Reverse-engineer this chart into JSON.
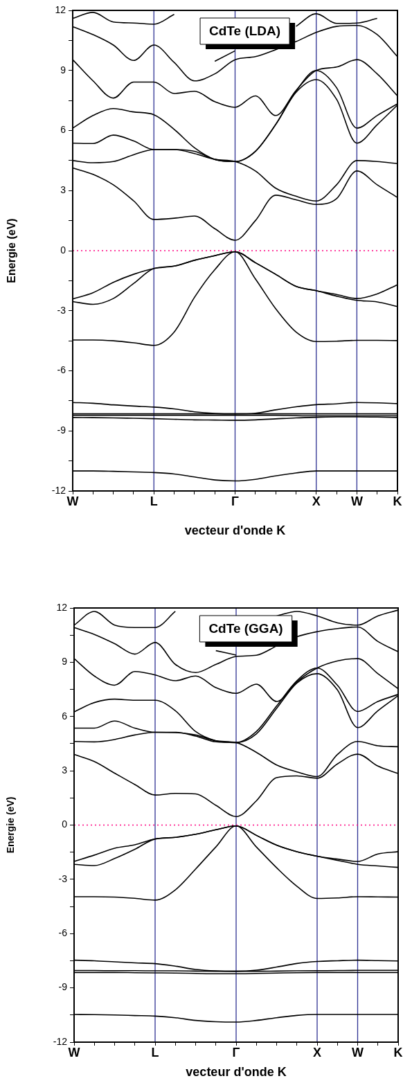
{
  "chart_data": [
    {
      "type": "line",
      "title": "CdTe (LDA)",
      "xlabel": "vecteur d'onde K",
      "ylabel": "Energie (eV)",
      "categories": [
        "W",
        null,
        null,
        null,
        "L",
        null,
        null,
        null,
        "Γ",
        null,
        null,
        null,
        "X",
        null,
        "W",
        null,
        "K"
      ],
      "ylim": [
        -12,
        12
      ],
      "yticks": [
        -12,
        {
          "value": -10.5,
          "label": null
        },
        -9,
        {
          "value": -7.5,
          "label": null
        },
        -6,
        {
          "value": -4.5,
          "label": null
        },
        -3,
        {
          "value": -1.5,
          "label": null
        },
        0,
        {
          "value": 1.5,
          "label": null
        },
        3,
        {
          "value": 4.5,
          "label": null
        },
        6,
        {
          "value": 7.5,
          "label": null
        },
        9,
        {
          "value": 10.5,
          "label": null
        },
        12
      ],
      "grid": "x",
      "ref_lines": [
        {
          "axis": "y",
          "value": 0,
          "color": "#ff0080",
          "line_style": "dotted"
        }
      ],
      "series": [
        {
          "color": "#000000",
          "values": [
            -11.0,
            -11.0,
            -11.02,
            -11.05,
            -11.08,
            -11.15,
            -11.3,
            -11.45,
            -11.5,
            -11.42,
            -11.25,
            -11.1,
            -11.0,
            -11.0,
            -11.0,
            -11.0,
            -11.0
          ]
        },
        {
          "color": "#000000",
          "values": [
            -8.33,
            -8.34,
            -8.35,
            -8.37,
            -8.39,
            -8.42,
            -8.45,
            -8.46,
            -8.47,
            -8.45,
            -8.4,
            -8.35,
            -8.32,
            -8.3,
            -8.3,
            -8.31,
            -8.33
          ]
        },
        {
          "color": "#000000",
          "values": [
            -8.22,
            -8.22,
            -8.22,
            -8.22,
            -8.22,
            -8.22,
            -8.22,
            -8.22,
            -8.22,
            -8.22,
            -8.22,
            -8.24,
            -8.25,
            -8.25,
            -8.25,
            -8.25,
            -8.25
          ]
        },
        {
          "color": "#000000",
          "values": [
            -8.15,
            -8.15,
            -8.15,
            -8.15,
            -8.15,
            -8.15,
            -8.15,
            -8.15,
            -8.15,
            -8.15,
            -8.15,
            -8.15,
            -8.15,
            -8.15,
            -8.15,
            -8.15,
            -8.15
          ]
        },
        {
          "color": "#000000",
          "values": [
            -7.58,
            -7.62,
            -7.7,
            -7.76,
            -7.81,
            -7.9,
            -8.05,
            -8.13,
            -8.15,
            -8.12,
            -7.95,
            -7.8,
            -7.69,
            -7.65,
            -7.58,
            -7.6,
            -7.64
          ]
        },
        {
          "color": "#000000",
          "values": [
            -4.46,
            -4.46,
            -4.5,
            -4.6,
            -4.73,
            -4.06,
            -2.33,
            -0.95,
            -0.05,
            -1.41,
            -2.9,
            -4.06,
            -4.54,
            -4.52,
            -4.48,
            -4.48,
            -4.49
          ]
        },
        {
          "color": "#000000",
          "values": [
            -2.54,
            -2.68,
            -2.39,
            -1.64,
            -0.89,
            -0.77,
            -0.48,
            -0.25,
            -0.05,
            -0.6,
            -1.18,
            -1.78,
            -2.0,
            -2.27,
            -2.48,
            -2.56,
            -2.79
          ]
        },
        {
          "color": "#000000",
          "values": [
            -2.41,
            -2.1,
            -1.58,
            -1.18,
            -0.89,
            -0.77,
            -0.48,
            -0.25,
            -0.05,
            -0.6,
            -1.18,
            -1.78,
            -2.0,
            -2.19,
            -2.39,
            -2.16,
            -1.7
          ]
        },
        {
          "color": "#000000",
          "values": [
            4.13,
            3.81,
            3.29,
            2.49,
            1.56,
            1.62,
            1.73,
            1.1,
            0.52,
            1.5,
            2.77,
            2.54,
            2.31,
            2.6,
            3.98,
            3.29,
            2.66
          ]
        },
        {
          "color": "#000000",
          "values": [
            4.5,
            4.39,
            4.45,
            4.79,
            5.05,
            5.05,
            4.85,
            4.56,
            4.45,
            3.98,
            3.12,
            2.72,
            2.48,
            3.29,
            4.5,
            4.45,
            4.35
          ]
        },
        {
          "color": "#000000",
          "values": [
            5.37,
            5.35,
            5.77,
            5.48,
            5.05,
            5.05,
            4.96,
            4.56,
            4.45,
            4.96,
            6.3,
            7.9,
            8.54,
            7.56,
            5.37,
            6.29,
            7.27
          ]
        },
        {
          "color": "#000000",
          "values": [
            6.12,
            6.75,
            7.1,
            6.93,
            6.79,
            6.06,
            5.14,
            4.56,
            4.45,
            4.96,
            6.3,
            7.96,
            9.0,
            8.14,
            6.12,
            6.75,
            7.33
          ]
        },
        {
          "color": "#000000",
          "values": [
            9.54,
            8.48,
            7.62,
            8.42,
            8.42,
            7.85,
            7.96,
            7.44,
            7.16,
            7.73,
            6.75,
            8.0,
            9.0,
            9.17,
            9.54,
            8.83,
            7.73
          ]
        },
        {
          "color": "#000000",
          "values": [
            11.19,
            10.79,
            10.27,
            9.5,
            10.27,
            9.4,
            8.48,
            8.83,
            9.54,
            9.69,
            10.04,
            10.44,
            10.9,
            11.2,
            11.25,
            10.79,
            9.69
          ]
        },
        {
          "color": "#000000",
          "values": [
            11.6,
            11.9,
            11.42,
            11.37,
            11.31,
            11.8,
            null,
            9.46,
            9.98,
            null,
            null,
            11.2,
            11.83,
            11.35,
            11.37,
            11.6,
            null
          ]
        }
      ]
    },
    {
      "type": "line",
      "title": "CdTe (GGA)",
      "xlabel": "vecteur d'onde K",
      "ylabel": "Energie (eV)",
      "categories": [
        "W",
        null,
        null,
        null,
        "L",
        null,
        null,
        null,
        "Γ",
        null,
        null,
        null,
        "X",
        null,
        "W",
        null,
        "K"
      ],
      "ylim": [
        -12,
        12
      ],
      "yticks": [
        -12,
        {
          "value": -10.5,
          "label": null
        },
        -9,
        {
          "value": -7.5,
          "label": null
        },
        -6,
        {
          "value": -4.5,
          "label": null
        },
        -3,
        {
          "value": -1.5,
          "label": null
        },
        0,
        {
          "value": 1.5,
          "label": null
        },
        3,
        {
          "value": 4.5,
          "label": null
        },
        6,
        {
          "value": 7.5,
          "label": null
        },
        9,
        {
          "value": 10.5,
          "label": null
        },
        12
      ],
      "grid": "x",
      "ref_lines": [
        {
          "axis": "y",
          "value": 0,
          "color": "#ff0080",
          "line_style": "dotted"
        }
      ],
      "series": [
        {
          "color": "#000000",
          "values": [
            -10.47,
            -10.48,
            -10.5,
            -10.53,
            -10.56,
            -10.65,
            -10.8,
            -10.87,
            -10.89,
            -10.8,
            -10.65,
            -10.52,
            -10.47,
            -10.47,
            -10.47,
            -10.47,
            -10.47
          ]
        },
        {
          "color": "#000000",
          "values": [
            -8.15,
            -8.15,
            -8.15,
            -8.16,
            -8.17,
            -8.18,
            -8.2,
            -8.22,
            -8.22,
            -8.2,
            -8.18,
            -8.16,
            -8.15,
            -8.15,
            -8.15,
            -8.15,
            -8.15
          ]
        },
        {
          "color": "#000000",
          "values": [
            -8.04,
            -8.04,
            -8.05,
            -8.05,
            -8.06,
            -8.06,
            -8.07,
            -8.08,
            -8.08,
            -8.08,
            -8.07,
            -8.06,
            -8.05,
            -8.04,
            -8.03,
            -8.03,
            -8.03
          ]
        },
        {
          "color": "#000000",
          "values": [
            -7.47,
            -7.5,
            -7.56,
            -7.62,
            -7.66,
            -7.8,
            -7.98,
            -8.06,
            -8.08,
            -8.02,
            -7.85,
            -7.65,
            -7.54,
            -7.5,
            -7.47,
            -7.49,
            -7.51
          ]
        },
        {
          "color": "#000000",
          "values": [
            -3.96,
            -3.96,
            -3.98,
            -4.05,
            -4.15,
            -3.58,
            -2.43,
            -1.21,
            -0.05,
            -1.21,
            -2.36,
            -3.38,
            -4.06,
            -4.03,
            -3.96,
            -3.97,
            -3.98
          ]
        },
        {
          "color": "#000000",
          "values": [
            -2.17,
            -2.24,
            -1.85,
            -1.34,
            -0.77,
            -0.68,
            -0.51,
            -0.26,
            -0.05,
            -0.57,
            -1.11,
            -1.47,
            -1.72,
            -1.95,
            -2.17,
            -2.26,
            -2.34
          ]
        },
        {
          "color": "#000000",
          "values": [
            -2.01,
            -1.66,
            -1.28,
            -1.09,
            -0.77,
            -0.68,
            -0.51,
            -0.26,
            -0.05,
            -0.57,
            -1.11,
            -1.47,
            -1.72,
            -1.88,
            -2.01,
            -1.6,
            -1.47
          ]
        },
        {
          "color": "#000000",
          "values": [
            3.9,
            3.51,
            2.87,
            2.24,
            1.66,
            1.75,
            1.72,
            1.09,
            0.47,
            1.34,
            2.62,
            2.72,
            2.59,
            3.38,
            3.92,
            3.26,
            2.85
          ]
        },
        {
          "color": "#000000",
          "values": [
            4.62,
            4.6,
            4.73,
            4.98,
            5.13,
            5.11,
            4.98,
            4.66,
            4.56,
            4.02,
            3.32,
            2.94,
            2.68,
            3.9,
            4.62,
            4.38,
            4.33
          ]
        },
        {
          "color": "#000000",
          "values": [
            5.36,
            5.36,
            5.75,
            5.36,
            5.13,
            5.13,
            4.92,
            4.6,
            4.56,
            5.04,
            6.45,
            7.85,
            8.37,
            7.47,
            5.39,
            6.32,
            7.15
          ]
        },
        {
          "color": "#000000",
          "values": [
            6.26,
            6.77,
            6.96,
            6.9,
            6.9,
            6.32,
            5.17,
            4.66,
            4.56,
            5.17,
            6.58,
            7.98,
            8.68,
            7.73,
            6.28,
            6.83,
            7.22
          ]
        },
        {
          "color": "#000000",
          "values": [
            9.2,
            8.24,
            7.73,
            8.49,
            8.3,
            7.98,
            8.24,
            7.6,
            7.28,
            7.79,
            6.83,
            7.92,
            8.68,
            9.07,
            9.2,
            8.37,
            7.54
          ]
        },
        {
          "color": "#000000",
          "values": [
            10.92,
            10.54,
            10.03,
            9.45,
            10.09,
            8.88,
            8.43,
            8.88,
            9.32,
            9.39,
            9.9,
            10.41,
            10.69,
            10.86,
            10.95,
            10.15,
            9.58
          ]
        },
        {
          "color": "#000000",
          "values": [
            11.05,
            11.81,
            11.05,
            10.92,
            10.92,
            11.81,
            null,
            9.64,
            9.4,
            null,
            11.56,
            11.81,
            11.56,
            11.18,
            11.05,
            11.56,
            11.88
          ]
        }
      ]
    }
  ]
}
